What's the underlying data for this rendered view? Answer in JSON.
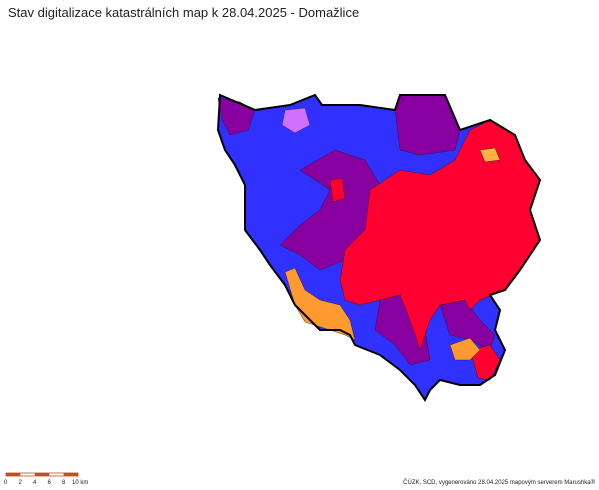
{
  "title": "Stav digitalizace katastrálních map k 28.04.2025 - Domažlice",
  "scale": {
    "labels": [
      "0",
      "2",
      "4",
      "6",
      "8",
      "10 km"
    ]
  },
  "credit": "ČÚZK, SCD, vygenerováno 28.04.2025 mapovým serverem Marushka®"
}
